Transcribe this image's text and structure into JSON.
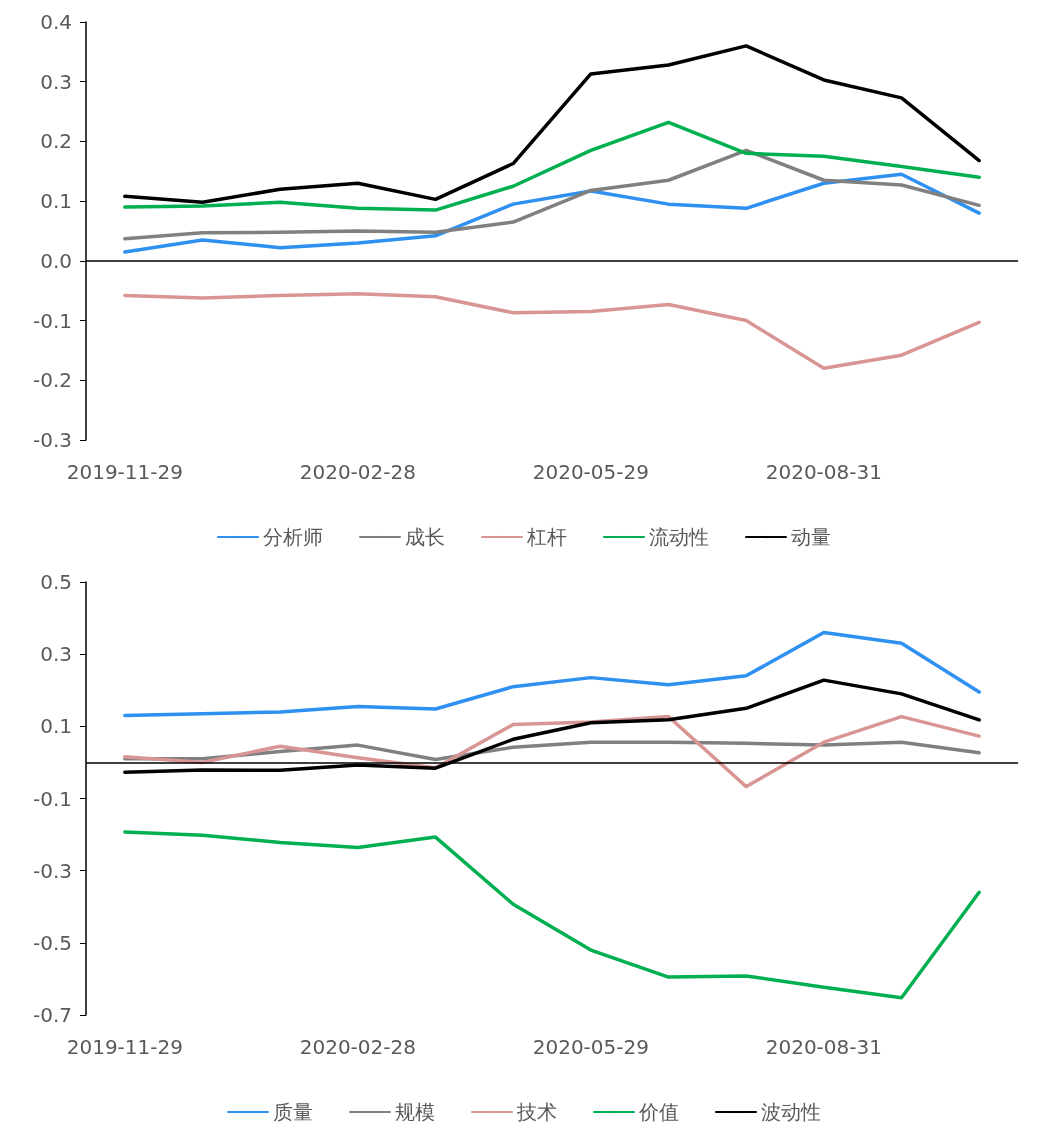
{
  "chart_data": [
    {
      "type": "line",
      "categories": [
        "2019-11-29",
        null,
        null,
        "2020-02-28",
        null,
        null,
        "2020-05-29",
        null,
        null,
        "2020-08-31",
        null,
        null
      ],
      "ylim": [
        -0.3,
        0.4
      ],
      "yticks": [
        -0.3,
        -0.2,
        -0.1,
        {
          "value": 0,
          "label": "0.0"
        },
        0.1,
        0.2,
        0.3,
        0.4
      ],
      "ref_lines": [
        {
          "axis": "y",
          "value": 0,
          "color": "#000000"
        }
      ],
      "grid": false,
      "legend": "bottom",
      "marker": "none",
      "line_style": "solid",
      "series": [
        {
          "name": "分析师",
          "color": "#2e90f0",
          "values": [
            0.015,
            0.035,
            0.022,
            0.03,
            0.042,
            0.095,
            0.117,
            0.095,
            0.088,
            0.13,
            0.145,
            0.08
          ]
        },
        {
          "name": "成长",
          "color": "#808080",
          "values": [
            0.037,
            0.047,
            0.048,
            0.05,
            0.048,
            0.065,
            0.118,
            0.135,
            0.185,
            0.135,
            0.127,
            0.093
          ]
        },
        {
          "name": "杠杆",
          "color": "#d99594",
          "values": [
            -0.058,
            -0.062,
            -0.058,
            -0.055,
            -0.06,
            -0.087,
            -0.085,
            -0.073,
            -0.1,
            -0.18,
            -0.158,
            -0.103
          ]
        },
        {
          "name": "流动性",
          "color": "#00b050",
          "values": [
            0.09,
            0.092,
            0.098,
            0.088,
            0.085,
            0.125,
            0.185,
            0.232,
            0.18,
            0.175,
            0.158,
            0.14
          ]
        },
        {
          "name": "动量",
          "color": "#000000",
          "values": [
            0.108,
            0.098,
            0.12,
            0.13,
            0.103,
            0.163,
            0.313,
            0.328,
            0.36,
            0.303,
            0.273,
            0.168
          ]
        }
      ]
    },
    {
      "type": "line",
      "categories": [
        "2019-11-29",
        null,
        null,
        "2020-02-28",
        null,
        null,
        "2020-05-29",
        null,
        null,
        "2020-08-31",
        null,
        null
      ],
      "ylim": [
        -0.7,
        0.5
      ],
      "yticks": [
        -0.7,
        -0.5,
        -0.3,
        -0.1,
        0.1,
        0.3,
        0.5
      ],
      "ref_lines": [
        {
          "axis": "y",
          "value": 0,
          "color": "#000000"
        }
      ],
      "grid": false,
      "legend": "bottom",
      "marker": "none",
      "line_style": "solid",
      "series": [
        {
          "name": "质量",
          "color": "#2e90f0",
          "values": [
            0.13,
            0.135,
            0.14,
            0.155,
            0.148,
            0.21,
            0.235,
            0.215,
            0.24,
            0.36,
            0.33,
            0.195
          ]
        },
        {
          "name": "规模",
          "color": "#808080",
          "values": [
            0.01,
            0.01,
            0.03,
            0.048,
            0.008,
            0.042,
            0.056,
            0.056,
            0.053,
            0.048,
            0.056,
            0.027
          ]
        },
        {
          "name": "技术",
          "color": "#d99594",
          "values": [
            0.016,
            0.0,
            0.045,
            0.013,
            -0.015,
            0.105,
            0.112,
            0.127,
            -0.067,
            0.056,
            0.127,
            0.073
          ]
        },
        {
          "name": "价值",
          "color": "#00b050",
          "values": [
            -0.193,
            -0.202,
            -0.222,
            -0.236,
            -0.207,
            -0.393,
            -0.52,
            -0.595,
            -0.592,
            -0.623,
            -0.652,
            -0.36
          ]
        },
        {
          "name": "波动性",
          "color": "#000000",
          "values": [
            -0.027,
            -0.021,
            -0.022,
            -0.007,
            -0.016,
            0.064,
            0.11,
            0.118,
            0.15,
            0.228,
            0.19,
            0.118
          ]
        }
      ]
    }
  ]
}
